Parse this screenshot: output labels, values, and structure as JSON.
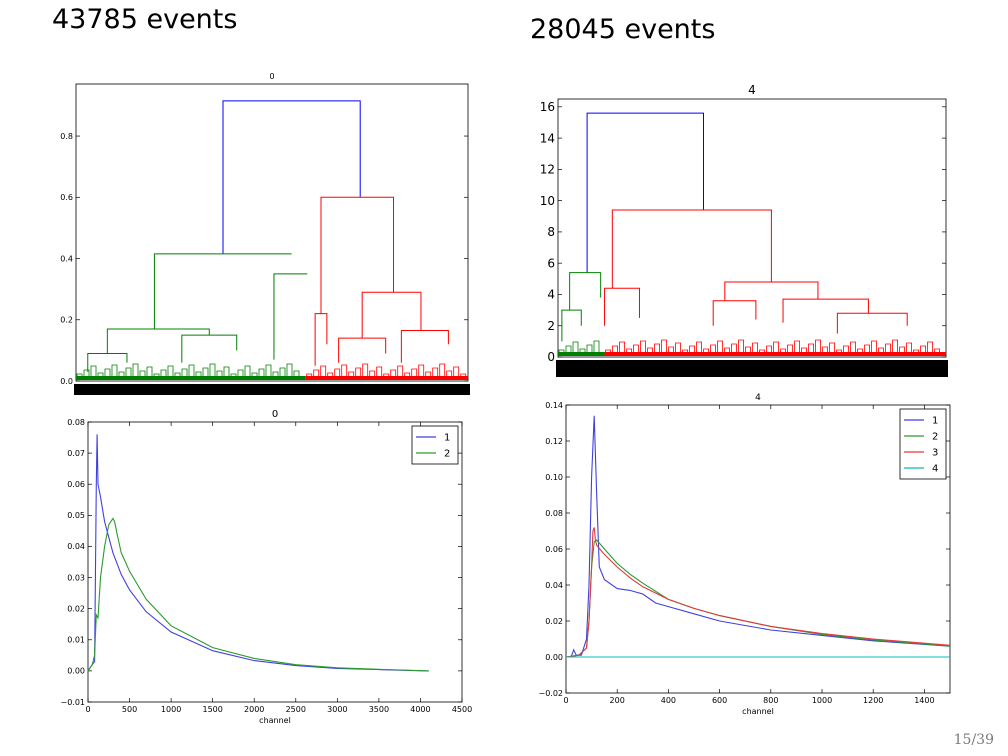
{
  "slide": {
    "title_left": "43785 events",
    "title_right": "28045 events",
    "page_number": "15/39"
  },
  "colors": {
    "blue": "#0000ff",
    "green": "#008000",
    "red": "#ff0000",
    "cyan": "#00bfbf",
    "line_blue": "#4040e0",
    "line_green": "#2e9a2e",
    "line_red": "#e03a3a"
  },
  "chart_data": [
    {
      "id": "dendrogram-left",
      "type": "dendrogram",
      "title": "0",
      "xlabel": "",
      "ylabel": "",
      "ylim": [
        0,
        0.97
      ],
      "yticks": [
        0.0,
        0.2,
        0.4,
        0.6,
        0.8
      ],
      "ytick_labels": [
        "0.0",
        "0.2",
        "0.4",
        "0.6",
        "0.8"
      ],
      "clusters": [
        {
          "color": "green",
          "leaf_range": [
            0,
            0.586
          ]
        },
        {
          "color": "red",
          "leaf_range": [
            0.586,
            1.0
          ]
        }
      ],
      "links": [
        {
          "x1": 0.375,
          "x2": 0.725,
          "h1": 0.415,
          "h2": 0.6,
          "top": 0.915,
          "color": "blue"
        },
        {
          "x1": 0.2,
          "x2": 0.55,
          "h1": 0.17,
          "h2": 0.415,
          "top": 0.415,
          "color": "green"
        },
        {
          "x1": 0.505,
          "x2": 0.59,
          "h1": 0.07,
          "h2": 0.35,
          "top": 0.35,
          "color": "green"
        },
        {
          "x1": 0.08,
          "x2": 0.34,
          "h1": 0.09,
          "h2": 0.15,
          "top": 0.17,
          "color": "green"
        },
        {
          "x1": 0.27,
          "x2": 0.41,
          "h1": 0.06,
          "h2": 0.1,
          "top": 0.15,
          "color": "green"
        },
        {
          "x1": 0.03,
          "x2": 0.13,
          "h1": 0.03,
          "h2": 0.06,
          "top": 0.09,
          "color": "green"
        },
        {
          "x1": 0.625,
          "x2": 0.81,
          "h1": 0.22,
          "h2": 0.29,
          "top": 0.6,
          "color": "red"
        },
        {
          "x1": 0.61,
          "x2": 0.64,
          "h1": 0.05,
          "h2": 0.12,
          "top": 0.22,
          "color": "red"
        },
        {
          "x1": 0.73,
          "x2": 0.88,
          "h1": 0.14,
          "h2": 0.165,
          "top": 0.29,
          "color": "red"
        },
        {
          "x1": 0.67,
          "x2": 0.79,
          "h1": 0.06,
          "h2": 0.09,
          "top": 0.14,
          "color": "red"
        },
        {
          "x1": 0.83,
          "x2": 0.95,
          "h1": 0.06,
          "h2": 0.12,
          "top": 0.165,
          "color": "red"
        }
      ]
    },
    {
      "id": "dendrogram-right",
      "type": "dendrogram",
      "title": "4",
      "xlabel": "",
      "ylabel": "",
      "ylim": [
        0,
        16.5
      ],
      "yticks": [
        0,
        2,
        4,
        6,
        8,
        10,
        12,
        14,
        16
      ],
      "ytick_labels": [
        "0",
        "2",
        "4",
        "6",
        "8",
        "10",
        "12",
        "14",
        "16"
      ],
      "clusters": [
        {
          "color": "green",
          "leaf_range": [
            0,
            0.12
          ]
        },
        {
          "color": "red",
          "leaf_range": [
            0.12,
            1.0
          ]
        }
      ],
      "links": [
        {
          "x1": 0.075,
          "x2": 0.375,
          "h1": 5.4,
          "h2": 9.4,
          "top": 15.6,
          "color": "blue"
        },
        {
          "x1": 0.03,
          "x2": 0.11,
          "h1": 3.0,
          "h2": 3.8,
          "top": 5.4,
          "color": "green"
        },
        {
          "x1": 0.01,
          "x2": 0.06,
          "h1": 1.0,
          "h2": 2.0,
          "top": 3.0,
          "color": "green"
        },
        {
          "x1": 0.14,
          "x2": 0.55,
          "h1": 4.4,
          "h2": 4.8,
          "top": 9.4,
          "color": "red"
        },
        {
          "x1": 0.12,
          "x2": 0.21,
          "h1": 2.0,
          "h2": 2.5,
          "top": 4.4,
          "color": "red"
        },
        {
          "x1": 0.43,
          "x2": 0.67,
          "h1": 3.6,
          "h2": 3.7,
          "top": 4.8,
          "color": "red"
        },
        {
          "x1": 0.4,
          "x2": 0.51,
          "h1": 2.0,
          "h2": 2.4,
          "top": 3.6,
          "color": "red"
        },
        {
          "x1": 0.58,
          "x2": 0.8,
          "h1": 2.2,
          "h2": 2.8,
          "top": 3.7,
          "color": "red"
        },
        {
          "x1": 0.72,
          "x2": 0.9,
          "h1": 1.5,
          "h2": 2.0,
          "top": 2.8,
          "color": "red"
        }
      ]
    },
    {
      "id": "line-left",
      "type": "line",
      "title": "0",
      "xlabel": "channel",
      "ylabel": "",
      "xlim": [
        0,
        4500
      ],
      "ylim": [
        -0.01,
        0.08
      ],
      "xticks": [
        0,
        500,
        1000,
        1500,
        2000,
        2500,
        3000,
        3500,
        4000,
        4500
      ],
      "xtick_labels": [
        "0",
        "500",
        "1000",
        "1500",
        "2000",
        "2500",
        "3000",
        "3500",
        "4000",
        "4500"
      ],
      "yticks": [
        -0.01,
        0.0,
        0.01,
        0.02,
        0.03,
        0.04,
        0.05,
        0.06,
        0.07,
        0.08
      ],
      "ytick_labels": [
        "−0.01",
        "0.00",
        "0.01",
        "0.02",
        "0.03",
        "0.04",
        "0.05",
        "0.06",
        "0.07",
        "0.08"
      ],
      "legend": "top-right",
      "series": [
        {
          "name": "1",
          "color": "blue",
          "x": [
            0,
            50,
            80,
            100,
            110,
            120,
            150,
            200,
            300,
            400,
            500,
            700,
            1000,
            1500,
            2000,
            2500,
            3000,
            3500,
            4100
          ],
          "y": [
            0.0,
            0.002,
            0.003,
            0.06,
            0.076,
            0.06,
            0.056,
            0.048,
            0.038,
            0.031,
            0.026,
            0.019,
            0.0125,
            0.0065,
            0.0033,
            0.0017,
            0.0008,
            0.0004,
            0.0
          ]
        },
        {
          "name": "2",
          "color": "green",
          "x": [
            0,
            50,
            80,
            100,
            120,
            150,
            200,
            250,
            300,
            320,
            350,
            400,
            500,
            700,
            1000,
            1500,
            2000,
            2500,
            3000,
            3500,
            4100
          ],
          "y": [
            0.0,
            0.002,
            0.005,
            0.018,
            0.017,
            0.03,
            0.04,
            0.047,
            0.049,
            0.048,
            0.044,
            0.038,
            0.032,
            0.023,
            0.0145,
            0.0075,
            0.004,
            0.002,
            0.001,
            0.0005,
            0.0
          ]
        }
      ]
    },
    {
      "id": "line-right",
      "type": "line",
      "title": "4",
      "xlabel": "channel",
      "ylabel": "",
      "xlim": [
        0,
        1500
      ],
      "ylim": [
        -0.02,
        0.14
      ],
      "xticks": [
        0,
        200,
        400,
        600,
        800,
        1000,
        1200,
        1400
      ],
      "xtick_labels": [
        "0",
        "200",
        "400",
        "600",
        "800",
        "1000",
        "1200",
        "1400"
      ],
      "yticks": [
        -0.02,
        0.0,
        0.02,
        0.04,
        0.06,
        0.08,
        0.1,
        0.12,
        0.14
      ],
      "ytick_labels": [
        "−0.02",
        "0.00",
        "0.02",
        "0.04",
        "0.06",
        "0.08",
        "0.10",
        "0.12",
        "0.14"
      ],
      "legend": "top-right",
      "series": [
        {
          "name": "1",
          "color": "blue",
          "x": [
            0,
            20,
            30,
            40,
            60,
            80,
            90,
            100,
            110,
            120,
            130,
            150,
            200,
            250,
            300,
            350,
            400,
            500,
            600,
            800,
            1000,
            1200,
            1500
          ],
          "y": [
            0.0,
            0.0,
            0.004,
            0.001,
            0.001,
            0.01,
            0.04,
            0.1,
            0.134,
            0.09,
            0.05,
            0.043,
            0.038,
            0.037,
            0.035,
            0.03,
            0.028,
            0.024,
            0.02,
            0.015,
            0.012,
            0.009,
            0.006
          ]
        },
        {
          "name": "2",
          "color": "green",
          "x": [
            0,
            50,
            80,
            90,
            100,
            110,
            120,
            150,
            200,
            250,
            300,
            400,
            500,
            600,
            800,
            1000,
            1200,
            1500
          ],
          "y": [
            0.0,
            0.001,
            0.005,
            0.02,
            0.05,
            0.064,
            0.065,
            0.06,
            0.052,
            0.046,
            0.041,
            0.032,
            0.027,
            0.023,
            0.017,
            0.0125,
            0.0095,
            0.006
          ]
        },
        {
          "name": "3",
          "color": "red",
          "x": [
            0,
            50,
            80,
            90,
            100,
            105,
            110,
            115,
            120,
            150,
            200,
            250,
            300,
            400,
            500,
            600,
            800,
            1000,
            1200,
            1500
          ],
          "y": [
            0.0,
            0.001,
            0.005,
            0.02,
            0.05,
            0.07,
            0.072,
            0.065,
            0.062,
            0.057,
            0.05,
            0.044,
            0.039,
            0.032,
            0.027,
            0.023,
            0.017,
            0.013,
            0.01,
            0.0065
          ]
        },
        {
          "name": "4",
          "color": "cyan",
          "x": [
            0,
            1500
          ],
          "y": [
            0.0,
            0.0
          ]
        }
      ]
    }
  ]
}
